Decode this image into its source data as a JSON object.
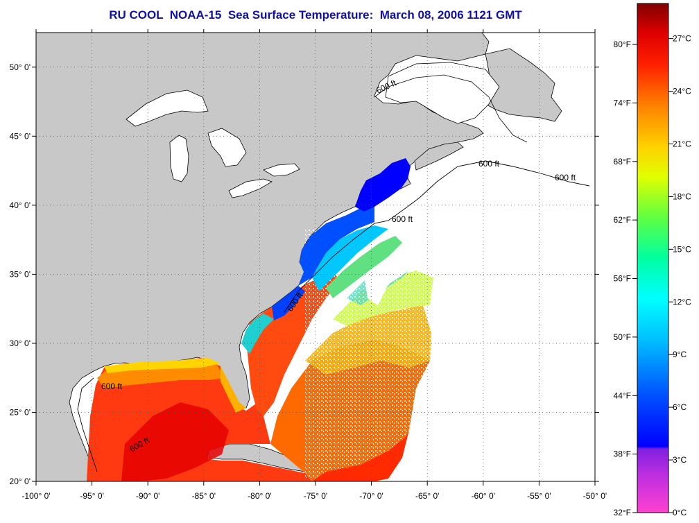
{
  "title": "RU COOL  NOAA-15  Sea Surface Temperature:  March 08, 2006 1121 GMT",
  "map": {
    "lon_range": [
      -100,
      -50
    ],
    "lat_range": [
      20,
      52.5
    ],
    "lon_ticks": [
      {
        "value": -100,
        "label": "-100° 0'"
      },
      {
        "value": -95,
        "label": "-95° 0'"
      },
      {
        "value": -90,
        "label": "-90° 0'"
      },
      {
        "value": -85,
        "label": "-85° 0'"
      },
      {
        "value": -80,
        "label": "-80° 0'"
      },
      {
        "value": -75,
        "label": "-75° 0'"
      },
      {
        "value": -70,
        "label": "-70° 0'"
      },
      {
        "value": -65,
        "label": "-65° 0'"
      },
      {
        "value": -60,
        "label": "-60° 0'"
      },
      {
        "value": -55,
        "label": "-55° 0'"
      },
      {
        "value": -50,
        "label": "-50° 0'"
      }
    ],
    "lat_ticks": [
      {
        "value": 20,
        "label": "20° 0'"
      },
      {
        "value": 25,
        "label": "25° 0'"
      },
      {
        "value": 30,
        "label": "30° 0'"
      },
      {
        "value": 35,
        "label": "35° 0'"
      },
      {
        "value": 40,
        "label": "40° 0'"
      },
      {
        "value": 45,
        "label": "45° 0'"
      },
      {
        "value": 50,
        "label": "50° 0'"
      }
    ],
    "isobath_labels": [
      "600 ft",
      "600 ft",
      "600 ft",
      "600 ft",
      "600 ft",
      "600 ft",
      "600 ft"
    ],
    "colors": {
      "land": "#c8c8c8",
      "ocean_no_data": "#ffffff",
      "coastline": "#000000"
    }
  },
  "colorbar": {
    "fahrenheit_labels": [
      "80°F",
      "74°F",
      "68°F",
      "62°F",
      "56°F",
      "50°F",
      "44°F",
      "38°F",
      "32°F"
    ],
    "celsius_labels": [
      "27°C",
      "24°C",
      "21°C",
      "18°C",
      "15°C",
      "12°C",
      "9°C",
      "6°C",
      "3°C",
      "0°C"
    ],
    "fahrenheit_values": [
      80,
      74,
      68,
      62,
      56,
      50,
      44,
      38,
      32
    ],
    "celsius_values": [
      27,
      24,
      21,
      18,
      15,
      12,
      9,
      6,
      3,
      0
    ],
    "range_c": [
      0,
      29
    ],
    "colors": [
      "#ff40d0",
      "#a020e0",
      "#0000ff",
      "#0090ff",
      "#00ffff",
      "#00ff90",
      "#60ff00",
      "#ffff00",
      "#ffa000",
      "#ff3000",
      "#ff0000",
      "#900000"
    ]
  }
}
